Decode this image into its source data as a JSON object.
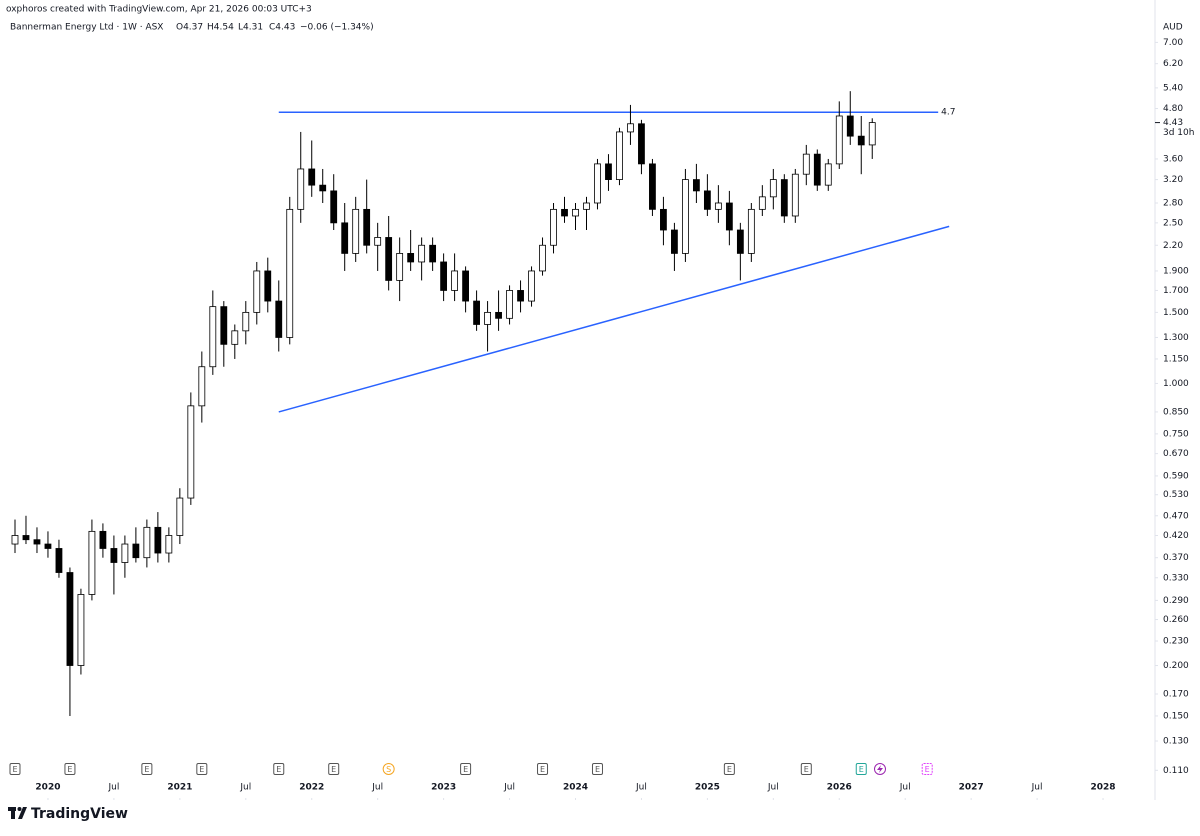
{
  "header": {
    "credit": "oxphoros created with TradingView.com, Apr 21, 2026 00:03 UTC+3",
    "symbol": "Bannerman Energy Ltd · 1W · ASX",
    "quote": [
      "O4.37",
      "H4.54",
      "L4.31",
      "C4.43",
      "−0.06 (−1.34%)"
    ]
  },
  "footer": {
    "brand": "TradingView"
  },
  "chart_data": {
    "type": "candlestick",
    "currency": "AUD",
    "log_scale": true,
    "grid": false,
    "up_color": "#ffffff",
    "down_color": "#000000",
    "border_color": "#000000",
    "x": [
      "2019-10",
      "2019-11",
      "2019-12",
      "2020-01",
      "2020-02",
      "2020-03",
      "2020-04",
      "2020-05",
      "2020-06",
      "2020-07",
      "2020-08",
      "2020-09",
      "2020-10",
      "2020-11",
      "2020-12",
      "2021-01",
      "2021-02",
      "2021-03",
      "2021-04",
      "2021-05",
      "2021-06",
      "2021-07",
      "2021-08",
      "2021-09",
      "2021-10",
      "2021-11",
      "2021-12",
      "2022-01",
      "2022-02",
      "2022-03",
      "2022-04",
      "2022-05",
      "2022-06",
      "2022-07",
      "2022-08",
      "2022-09",
      "2022-10",
      "2022-11",
      "2022-12",
      "2023-01",
      "2023-02",
      "2023-03",
      "2023-04",
      "2023-05",
      "2023-06",
      "2023-07",
      "2023-08",
      "2023-09",
      "2023-10",
      "2023-11",
      "2023-12",
      "2024-01",
      "2024-02",
      "2024-03",
      "2024-04",
      "2024-05",
      "2024-06",
      "2024-07",
      "2024-08",
      "2024-09",
      "2024-10",
      "2024-11",
      "2024-12",
      "2025-01",
      "2025-02",
      "2025-03",
      "2025-04",
      "2025-05",
      "2025-06",
      "2025-07",
      "2025-08",
      "2025-09",
      "2025-10",
      "2025-11",
      "2025-12",
      "2026-01",
      "2026-02",
      "2026-03",
      "2026-04"
    ],
    "open": [
      0.4,
      0.42,
      0.41,
      0.4,
      0.39,
      0.34,
      0.2,
      0.3,
      0.43,
      0.39,
      0.36,
      0.4,
      0.37,
      0.44,
      0.38,
      0.42,
      0.52,
      0.88,
      1.1,
      1.55,
      1.25,
      1.35,
      1.5,
      1.9,
      1.6,
      1.3,
      2.7,
      3.4,
      3.1,
      3.0,
      2.5,
      2.1,
      2.7,
      2.2,
      2.3,
      1.8,
      2.1,
      2.0,
      2.2,
      2.0,
      1.7,
      1.9,
      1.6,
      1.4,
      1.5,
      1.45,
      1.7,
      1.6,
      1.9,
      2.2,
      2.7,
      2.6,
      2.7,
      2.8,
      3.5,
      3.2,
      4.2,
      4.4,
      3.5,
      2.7,
      2.4,
      2.1,
      3.2,
      3.0,
      2.7,
      2.8,
      2.4,
      2.1,
      2.7,
      2.9,
      3.2,
      2.6,
      3.3,
      3.7,
      3.1,
      3.5,
      4.6,
      4.1,
      3.9
    ],
    "high": [
      0.46,
      0.47,
      0.44,
      0.43,
      0.41,
      0.35,
      0.31,
      0.46,
      0.45,
      0.42,
      0.42,
      0.44,
      0.46,
      0.48,
      0.44,
      0.55,
      0.95,
      1.2,
      1.7,
      1.6,
      1.4,
      1.6,
      2.0,
      2.05,
      1.8,
      2.9,
      4.2,
      4.0,
      3.4,
      3.3,
      2.8,
      2.9,
      3.2,
      2.5,
      2.6,
      2.3,
      2.4,
      2.3,
      2.3,
      2.1,
      2.1,
      1.95,
      1.7,
      1.6,
      1.7,
      1.75,
      1.8,
      1.95,
      2.3,
      2.8,
      2.9,
      2.8,
      2.9,
      3.6,
      3.7,
      4.3,
      4.9,
      4.5,
      3.6,
      2.9,
      2.5,
      3.4,
      3.5,
      3.3,
      3.1,
      3.0,
      2.5,
      2.8,
      3.1,
      3.4,
      3.3,
      3.4,
      3.9,
      3.8,
      3.6,
      5.0,
      5.3,
      4.6,
      4.54
    ],
    "low": [
      0.38,
      0.4,
      0.38,
      0.37,
      0.33,
      0.15,
      0.19,
      0.29,
      0.37,
      0.3,
      0.33,
      0.36,
      0.35,
      0.36,
      0.36,
      0.4,
      0.5,
      0.8,
      1.05,
      1.1,
      1.15,
      1.25,
      1.4,
      1.5,
      1.2,
      1.25,
      2.5,
      2.9,
      2.8,
      2.4,
      1.9,
      2.0,
      2.1,
      1.9,
      1.7,
      1.6,
      1.9,
      1.8,
      1.9,
      1.6,
      1.6,
      1.5,
      1.35,
      1.2,
      1.35,
      1.4,
      1.5,
      1.55,
      1.85,
      2.1,
      2.5,
      2.4,
      2.4,
      2.7,
      3.0,
      3.1,
      3.9,
      3.3,
      2.6,
      2.2,
      1.9,
      2.0,
      2.8,
      2.6,
      2.5,
      2.2,
      1.8,
      2.0,
      2.6,
      2.7,
      2.5,
      2.5,
      3.1,
      3.0,
      3.0,
      3.4,
      3.9,
      3.3,
      3.6
    ],
    "close": [
      0.42,
      0.41,
      0.4,
      0.39,
      0.34,
      0.2,
      0.3,
      0.43,
      0.39,
      0.36,
      0.4,
      0.37,
      0.44,
      0.38,
      0.42,
      0.52,
      0.88,
      1.1,
      1.55,
      1.25,
      1.35,
      1.5,
      1.9,
      1.6,
      1.3,
      2.7,
      3.4,
      3.1,
      3.0,
      2.5,
      2.1,
      2.7,
      2.2,
      2.3,
      1.8,
      2.1,
      2.0,
      2.2,
      2.0,
      1.7,
      1.9,
      1.6,
      1.4,
      1.5,
      1.45,
      1.7,
      1.6,
      1.9,
      2.2,
      2.7,
      2.6,
      2.7,
      2.8,
      3.5,
      3.2,
      4.2,
      4.4,
      3.5,
      2.7,
      2.4,
      2.1,
      3.2,
      3.0,
      2.7,
      2.8,
      2.4,
      2.1,
      2.7,
      2.9,
      3.2,
      2.6,
      3.3,
      3.7,
      3.1,
      3.5,
      4.6,
      4.1,
      3.9,
      4.43
    ],
    "last_price": 4.43,
    "countdown": "3d 10h",
    "xlim": [
      "2019-09",
      "2028-05"
    ],
    "xticks": [
      {
        "value": "2020-01",
        "label": "2020"
      },
      {
        "value": "2020-07",
        "label": "Jul"
      },
      {
        "value": "2021-01",
        "label": "2021"
      },
      {
        "value": "2021-07",
        "label": "Jul"
      },
      {
        "value": "2022-01",
        "label": "2022"
      },
      {
        "value": "2022-07",
        "label": "Jul"
      },
      {
        "value": "2023-01",
        "label": "2023"
      },
      {
        "value": "2023-07",
        "label": "Jul"
      },
      {
        "value": "2024-01",
        "label": "2024"
      },
      {
        "value": "2024-07",
        "label": "Jul"
      },
      {
        "value": "2025-01",
        "label": "2025"
      },
      {
        "value": "2025-07",
        "label": "Jul"
      },
      {
        "value": "2026-01",
        "label": "2026"
      },
      {
        "value": "2026-07",
        "label": "Jul"
      },
      {
        "value": "2027-01",
        "label": "2027"
      },
      {
        "value": "2027-07",
        "label": "Jul"
      },
      {
        "value": "2028-01",
        "label": "2028"
      }
    ],
    "ylim": [
      0.1,
      8
    ],
    "yticks": [
      {
        "value": 7,
        "label": "7.00"
      },
      {
        "value": 6.2,
        "label": "6.20"
      },
      {
        "value": 5.4,
        "label": "5.40"
      },
      {
        "value": 4.8,
        "label": "4.80"
      },
      {
        "value": 3.6,
        "label": "3.60"
      },
      {
        "value": 3.2,
        "label": "3.20"
      },
      {
        "value": 2.8,
        "label": "2.80"
      },
      {
        "value": 2.5,
        "label": "2.50"
      },
      {
        "value": 2.2,
        "label": "2.20"
      },
      {
        "value": 1.9,
        "label": "1.900"
      },
      {
        "value": 1.7,
        "label": "1.700"
      },
      {
        "value": 1.5,
        "label": "1.500"
      },
      {
        "value": 1.3,
        "label": "1.300"
      },
      {
        "value": 1.15,
        "label": "1.150"
      },
      {
        "value": 1,
        "label": "1.000"
      },
      {
        "value": 0.85,
        "label": "0.850"
      },
      {
        "value": 0.75,
        "label": "0.750"
      },
      {
        "value": 0.67,
        "label": "0.670"
      },
      {
        "value": 0.59,
        "label": "0.590"
      },
      {
        "value": 0.53,
        "label": "0.530"
      },
      {
        "value": 0.47,
        "label": "0.470"
      },
      {
        "value": 0.42,
        "label": "0.420"
      },
      {
        "value": 0.37,
        "label": "0.370"
      },
      {
        "value": 0.33,
        "label": "0.330"
      },
      {
        "value": 0.29,
        "label": "0.290"
      },
      {
        "value": 0.26,
        "label": "0.260"
      },
      {
        "value": 0.23,
        "label": "0.230"
      },
      {
        "value": 0.2,
        "label": "0.200"
      },
      {
        "value": 0.17,
        "label": "0.170"
      },
      {
        "value": 0.15,
        "label": "0.150"
      },
      {
        "value": 0.13,
        "label": "0.130"
      },
      {
        "value": 0.11,
        "label": "0.110"
      }
    ],
    "lines": [
      {
        "x": [
          "2021-10",
          "2026-10"
        ],
        "y": [
          4.7,
          4.7
        ],
        "label": "4.7",
        "color": "#2962ff"
      },
      {
        "x": [
          "2021-10",
          "2026-11"
        ],
        "y": [
          0.85,
          2.45
        ],
        "color": "#2962ff"
      }
    ],
    "events": [
      {
        "x": "2019-10",
        "label": "E",
        "color": "#555555"
      },
      {
        "x": "2020-03",
        "label": "E",
        "color": "#555555"
      },
      {
        "x": "2020-10",
        "label": "E",
        "color": "#555555"
      },
      {
        "x": "2021-03",
        "label": "E",
        "color": "#555555"
      },
      {
        "x": "2021-10",
        "label": "E",
        "color": "#555555"
      },
      {
        "x": "2022-03",
        "label": "E",
        "color": "#555555"
      },
      {
        "x": "2022-08",
        "label": "S",
        "color": "#f5a623"
      },
      {
        "x": "2023-03",
        "label": "E",
        "color": "#555555"
      },
      {
        "x": "2023-10",
        "label": "E",
        "color": "#555555"
      },
      {
        "x": "2024-03",
        "label": "E",
        "color": "#555555"
      },
      {
        "x": "2025-03",
        "label": "E",
        "color": "#555555"
      },
      {
        "x": "2025-10",
        "label": "E",
        "color": "#555555"
      },
      {
        "x": "2026-03",
        "label": "E",
        "color": "#22a699"
      },
      {
        "x": "2026-09",
        "label": "E",
        "color": "#e040fb"
      }
    ]
  }
}
